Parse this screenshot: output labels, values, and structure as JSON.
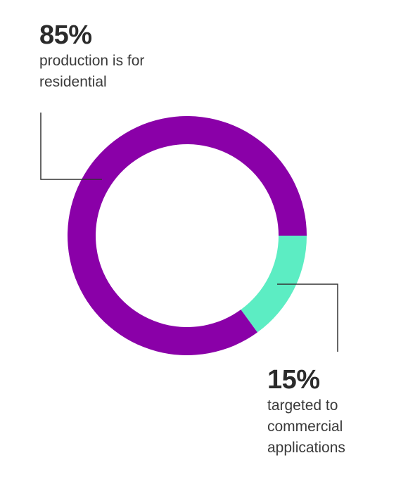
{
  "chart_data": {
    "type": "pie",
    "title": "",
    "categories": [
      "production is for residential",
      "targeted to commercial applications"
    ],
    "values": [
      85,
      15
    ],
    "colors": [
      "#8a00a8",
      "#5cedc3"
    ],
    "unit": "%",
    "labels": [
      {
        "value_text": "85%",
        "text_lines": [
          "production is for",
          "residential"
        ]
      },
      {
        "value_text": "15%",
        "text_lines": [
          "targeted to",
          "commercial",
          "applications"
        ]
      }
    ]
  },
  "leader_line_color": "#333333"
}
